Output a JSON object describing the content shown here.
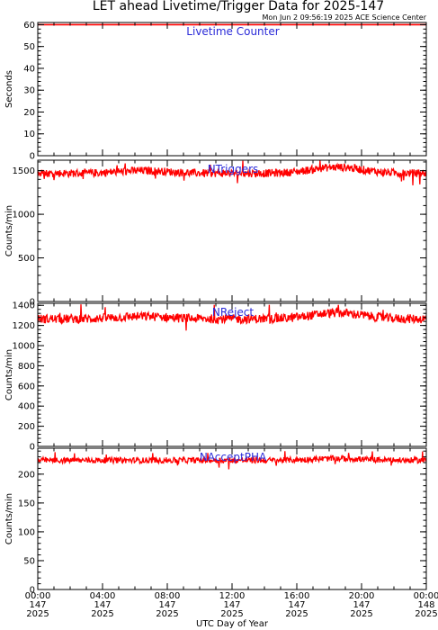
{
  "header": {
    "title": "LET ahead Livetime/Trigger Data for 2025-147",
    "timestamp": "Mon Jun  2 09:56:19 2025 ACE Science Center"
  },
  "colors": {
    "series": "#ff0000",
    "panel_label": "#2a2ad8",
    "axis": "#000000"
  },
  "chart_data": [
    {
      "type": "line",
      "title": "Livetime Counter",
      "ylabel": "Seconds",
      "ylim": [
        0,
        61
      ],
      "yticks": [
        0,
        10,
        20,
        30,
        40,
        50,
        60
      ],
      "x_range_hours": [
        0,
        24
      ],
      "series": [
        {
          "mean": 60,
          "noise": 0,
          "spike_count": 0
        }
      ]
    },
    {
      "type": "line",
      "title": "NTriggers",
      "ylabel": "Counts/min",
      "ylim": [
        0,
        1620
      ],
      "yticks": [
        0,
        500,
        1000,
        1500
      ],
      "x_range_hours": [
        0,
        24
      ],
      "series": [
        {
          "mean": 1470,
          "noise": 45,
          "bumps": [
            {
              "center": 6.5,
              "amp": 30
            },
            {
              "center": 18.5,
              "amp": 70
            }
          ],
          "spike_count": 12
        }
      ]
    },
    {
      "type": "line",
      "title": "NReject",
      "ylabel": "Counts/min",
      "ylim": [
        0,
        1420
      ],
      "yticks": [
        0,
        200,
        400,
        600,
        800,
        1000,
        1200,
        1400
      ],
      "x_range_hours": [
        0,
        24
      ],
      "series": [
        {
          "mean": 1265,
          "noise": 45,
          "bumps": [
            {
              "center": 6.5,
              "amp": 25
            },
            {
              "center": 18.5,
              "amp": 60
            }
          ],
          "spike_count": 12
        }
      ]
    },
    {
      "type": "line",
      "title": "NAcceptPHA",
      "ylabel": "Counts/min",
      "ylim": [
        0,
        245
      ],
      "yticks": [
        0,
        50,
        100,
        150,
        200
      ],
      "x_range_hours": [
        0,
        24
      ],
      "series": [
        {
          "mean": 224,
          "noise": 5,
          "bumps": [
            {
              "center": 18.5,
              "amp": 3
            }
          ],
          "spike_count": 10
        }
      ]
    }
  ],
  "x_axis": {
    "label": "UTC Day of Year",
    "ticks": [
      {
        "time": "00:00",
        "doy": "147",
        "year": "2025"
      },
      {
        "time": "04:00",
        "doy": "147",
        "year": "2025"
      },
      {
        "time": "08:00",
        "doy": "147",
        "year": "2025"
      },
      {
        "time": "12:00",
        "doy": "147",
        "year": "2025"
      },
      {
        "time": "16:00",
        "doy": "147",
        "year": "2025"
      },
      {
        "time": "20:00",
        "doy": "147",
        "year": "2025"
      },
      {
        "time": "00:00",
        "doy": "148",
        "year": "2025"
      }
    ]
  }
}
